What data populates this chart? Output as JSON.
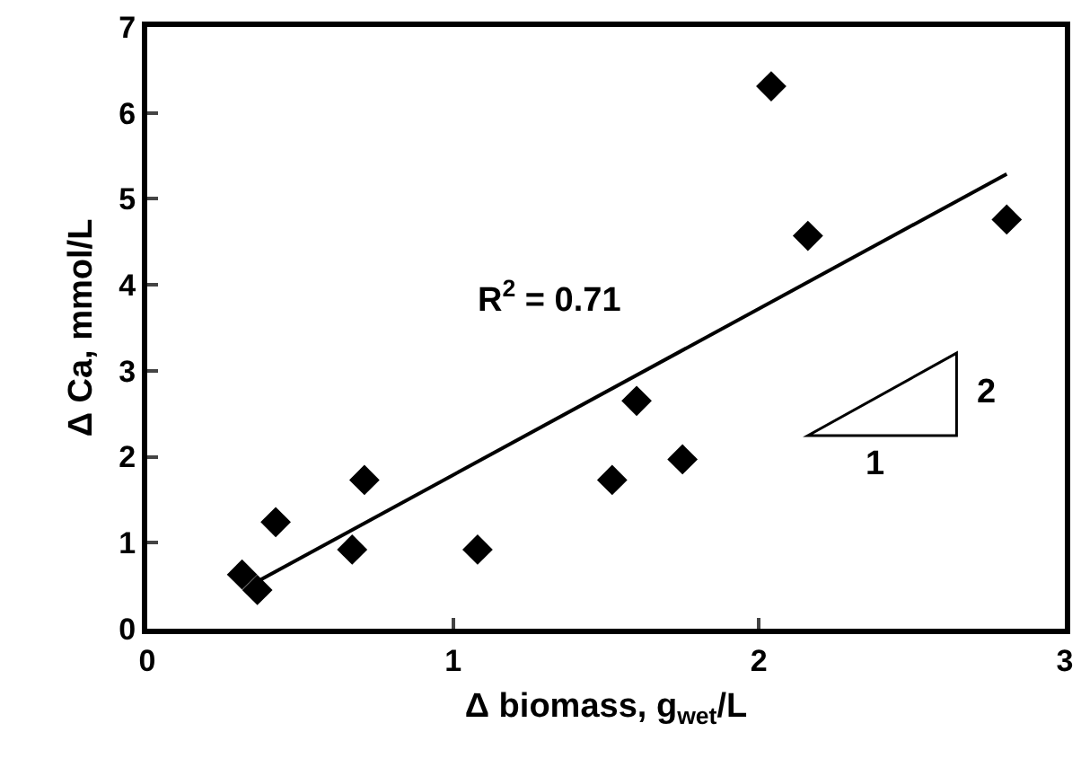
{
  "chart_data": {
    "type": "scatter",
    "xlabel": "Δ biomass, g$_{wet}$/L",
    "ylabel": "Δ Ca, mmol/L",
    "x": [
      0.31,
      0.36,
      0.42,
      0.67,
      0.71,
      1.08,
      1.52,
      1.6,
      1.75,
      2.04,
      2.16,
      2.81
    ],
    "series": [
      {
        "color": "#000000",
        "marker": "diamond",
        "values": [
          0.63,
          0.45,
          1.24,
          0.92,
          1.73,
          0.92,
          1.73,
          2.65,
          1.97,
          6.31,
          4.57,
          4.76
        ]
      },
      {
        "type": "line",
        "color": "#000000",
        "x": [
          0.365,
          2.81
        ],
        "values": [
          0.56,
          5.29
        ]
      }
    ],
    "annotations": [
      "R$^{2}$ = 0.71",
      "2",
      "1"
    ],
    "xlim": [
      0,
      3
    ],
    "xticks": [
      0,
      1,
      2,
      3
    ],
    "ylim": [
      0,
      7
    ],
    "yticks": [
      0,
      1,
      2,
      3,
      4,
      5,
      6,
      7
    ],
    "grid": false
  }
}
